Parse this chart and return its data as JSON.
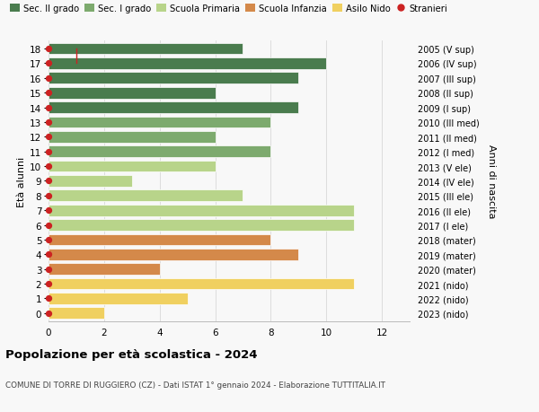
{
  "ages": [
    18,
    17,
    16,
    15,
    14,
    13,
    12,
    11,
    10,
    9,
    8,
    7,
    6,
    5,
    4,
    3,
    2,
    1,
    0
  ],
  "years": [
    "2005 (V sup)",
    "2006 (IV sup)",
    "2007 (III sup)",
    "2008 (II sup)",
    "2009 (I sup)",
    "2010 (III med)",
    "2011 (II med)",
    "2012 (I med)",
    "2013 (V ele)",
    "2014 (IV ele)",
    "2015 (III ele)",
    "2016 (II ele)",
    "2017 (I ele)",
    "2018 (mater)",
    "2019 (mater)",
    "2020 (mater)",
    "2021 (nido)",
    "2022 (nido)",
    "2023 (nido)"
  ],
  "values": [
    7,
    10,
    9,
    6,
    9,
    8,
    6,
    8,
    6,
    3,
    7,
    11,
    11,
    8,
    9,
    4,
    11,
    5,
    2
  ],
  "stranieri_vals": [
    1,
    1,
    0,
    0,
    0,
    0,
    0,
    0,
    0,
    0,
    0,
    0,
    0,
    0,
    0,
    0,
    0,
    0,
    0
  ],
  "bar_colors": [
    "#4a7c4e",
    "#4a7c4e",
    "#4a7c4e",
    "#4a7c4e",
    "#4a7c4e",
    "#7daa6e",
    "#7daa6e",
    "#7daa6e",
    "#b8d48a",
    "#b8d48a",
    "#b8d48a",
    "#b8d48a",
    "#b8d48a",
    "#d4894a",
    "#d4894a",
    "#d4894a",
    "#f0d060",
    "#f0d060",
    "#f0d060"
  ],
  "legend_labels": [
    "Sec. II grado",
    "Sec. I grado",
    "Scuola Primaria",
    "Scuola Infanzia",
    "Asilo Nido",
    "Stranieri"
  ],
  "legend_colors": [
    "#4a7c4e",
    "#7daa6e",
    "#b8d48a",
    "#d4894a",
    "#f0d060",
    "#cc2222"
  ],
  "title": "Popolazione per età scolastica - 2024",
  "subtitle": "COMUNE DI TORRE DI RUGGIERO (CZ) - Dati ISTAT 1° gennaio 2024 - Elaborazione TUTTITALIA.IT",
  "ylabel_left": "Età alunni",
  "ylabel_right": "Anni di nascita",
  "xlim": [
    0,
    13
  ],
  "background_color": "#f8f8f8",
  "grid_color": "#dddddd",
  "bar_edgecolor": "white",
  "stranieri_color": "#cc2222",
  "stranieri_dot_ages": [
    18,
    17,
    16,
    15,
    14,
    13,
    12,
    11,
    10,
    9,
    8,
    7,
    6,
    5,
    4,
    3,
    2,
    1,
    0
  ]
}
